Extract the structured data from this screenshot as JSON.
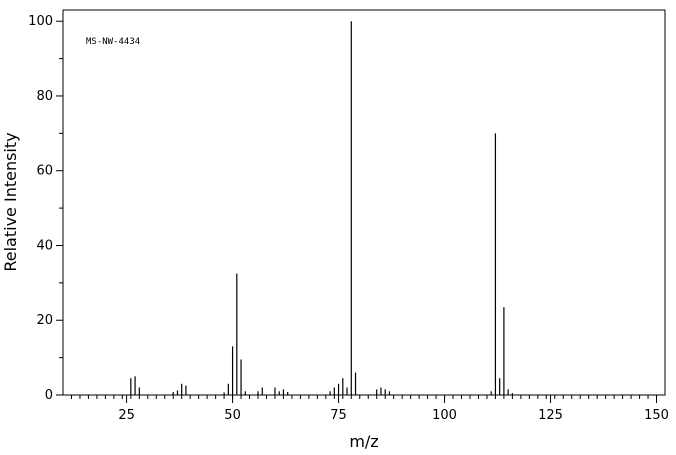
{
  "chart_data": {
    "type": "bar",
    "subtype": "mass-spectrum-stick",
    "title": "",
    "annotation": "MS-NW-4434",
    "xlabel": "m/z",
    "ylabel": "Relative Intensity",
    "xlim": [
      10,
      152
    ],
    "ylim": [
      0,
      103
    ],
    "x_ticks": [
      25,
      50,
      75,
      100,
      125,
      150
    ],
    "y_ticks": [
      0,
      20,
      40,
      60,
      80,
      100
    ],
    "grid": false,
    "legend": "none",
    "series": [
      {
        "x": [
          26,
          27,
          28,
          36,
          37,
          38,
          39,
          48,
          49,
          50,
          51,
          52,
          53,
          56,
          57,
          60,
          61,
          62,
          63,
          73,
          74,
          75,
          76,
          77,
          78,
          79,
          84,
          85,
          86,
          87,
          111,
          112,
          113,
          114,
          115,
          116
        ],
        "values": [
          4.5,
          5,
          2,
          0.8,
          1.2,
          3,
          2.5,
          0.7,
          3,
          13,
          32.5,
          9.5,
          1,
          1,
          2,
          2,
          1,
          1.5,
          0.8,
          1,
          2,
          3,
          4.5,
          2,
          100,
          6,
          1.5,
          2,
          1.5,
          1,
          1,
          70,
          4.5,
          23.5,
          1.5,
          0.5
        ]
      }
    ]
  }
}
